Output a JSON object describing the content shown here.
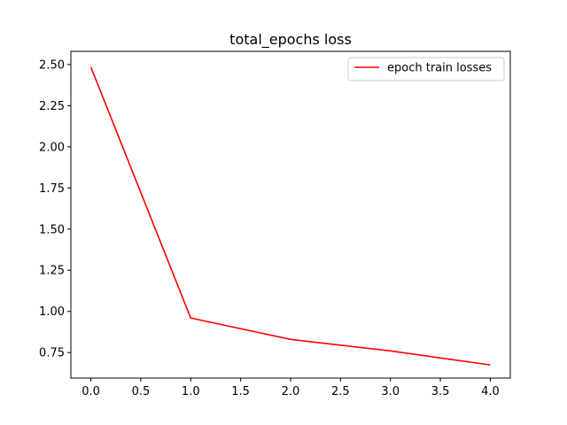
{
  "chart_data": {
    "type": "line",
    "title": "total_epochs loss",
    "xlabel": "",
    "ylabel": "",
    "xlim": [
      -0.2,
      4.2
    ],
    "ylim": [
      0.595,
      2.58
    ],
    "x_ticks": [
      0.0,
      0.5,
      1.0,
      1.5,
      2.0,
      2.5,
      3.0,
      3.5,
      4.0
    ],
    "x_tick_labels": [
      "0.0",
      "0.5",
      "1.0",
      "1.5",
      "2.0",
      "2.5",
      "3.0",
      "3.5",
      "4.0"
    ],
    "y_ticks": [
      0.75,
      1.0,
      1.25,
      1.5,
      1.75,
      2.0,
      2.25,
      2.5
    ],
    "y_tick_labels": [
      "0.75",
      "1.00",
      "1.25",
      "1.50",
      "1.75",
      "2.00",
      "2.25",
      "2.50"
    ],
    "grid": false,
    "legend_position": "top-right",
    "series": [
      {
        "name": "epoch train losses",
        "color": "#ff0000",
        "x": [
          0,
          1,
          2,
          3,
          4
        ],
        "y": [
          2.485,
          0.96,
          0.83,
          0.76,
          0.675
        ]
      }
    ]
  }
}
